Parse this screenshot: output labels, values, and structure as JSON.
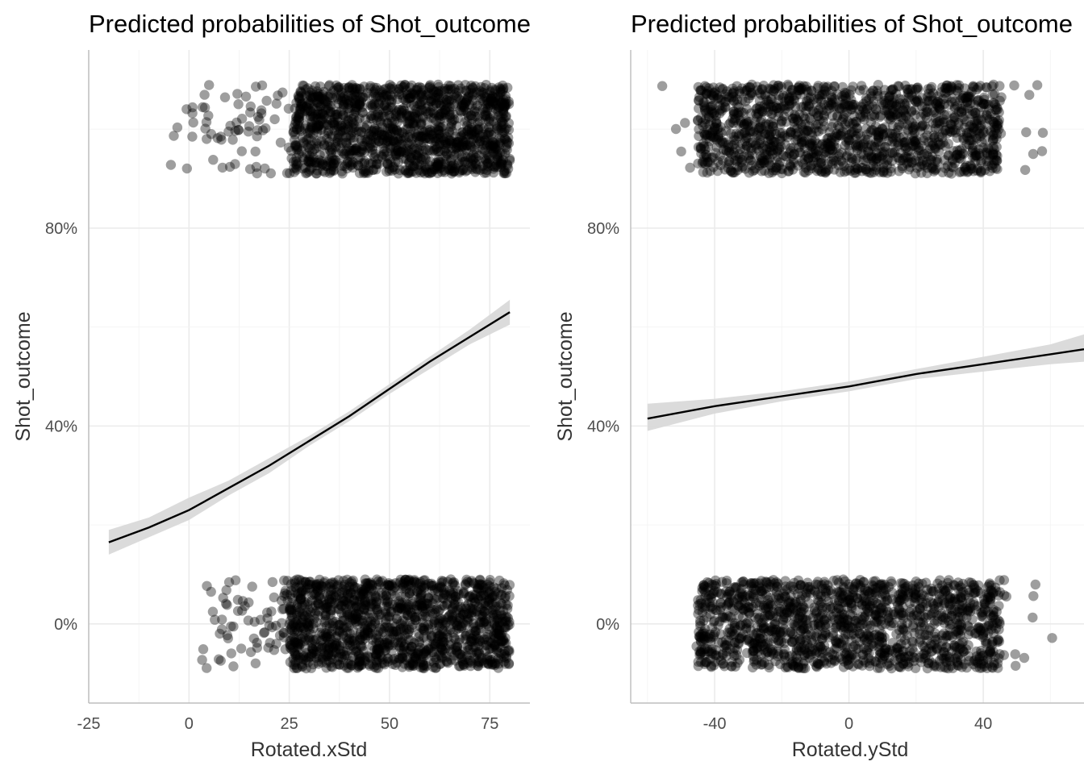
{
  "chart_data": [
    {
      "type": "line",
      "title": "Predicted probabilities of Shot_outcome",
      "xlabel": "Rotated.xStd",
      "ylabel": "Shot_outcome",
      "xlim": [
        -25,
        85
      ],
      "ylim": [
        -0.16,
        1.16
      ],
      "grid": true,
      "x_ticks": [
        -25,
        0,
        25,
        50,
        75
      ],
      "x_tick_labels": [
        "-25",
        "0",
        "25",
        "50",
        "75"
      ],
      "y_ticks": [
        0,
        0.4,
        0.8
      ],
      "y_tick_labels": [
        "0%",
        "40%",
        "80%"
      ],
      "series": [
        {
          "x": [
            -20,
            -10,
            0,
            10,
            20,
            30,
            40,
            50,
            60,
            70,
            80
          ],
          "y": [
            0.165,
            0.195,
            0.23,
            0.275,
            0.32,
            0.37,
            0.42,
            0.475,
            0.53,
            0.58,
            0.63
          ],
          "ci_low": [
            0.14,
            0.175,
            0.21,
            0.26,
            0.305,
            0.36,
            0.41,
            0.465,
            0.515,
            0.565,
            0.605
          ],
          "ci_high": [
            0.19,
            0.215,
            0.255,
            0.29,
            0.335,
            0.38,
            0.43,
            0.485,
            0.54,
            0.595,
            0.655
          ]
        }
      ],
      "observations": {
        "outcome_1": {
          "x_dense": [
            26,
            80
          ],
          "x_sparse": [
            -7,
            26
          ],
          "y_band": [
            0.91,
            1.09
          ]
        },
        "outcome_0": {
          "x_dense": [
            25,
            80
          ],
          "x_sparse": [
            -3,
            25
          ],
          "y_band": [
            -0.09,
            0.09
          ]
        }
      }
    },
    {
      "type": "line",
      "title": "Predicted probabilities of Shot_outcome",
      "xlabel": "Rotated.yStd",
      "ylabel": "Shot_outcome",
      "xlim": [
        -65,
        70
      ],
      "ylim": [
        -0.16,
        1.16
      ],
      "grid": true,
      "x_ticks": [
        -40,
        0,
        40
      ],
      "x_tick_labels": [
        "-40",
        "0",
        "40"
      ],
      "y_ticks": [
        0,
        0.4,
        0.8
      ],
      "y_tick_labels": [
        "0%",
        "40%",
        "80%"
      ],
      "series": [
        {
          "x": [
            -60,
            -40,
            -20,
            0,
            20,
            40,
            60,
            70
          ],
          "y": [
            0.415,
            0.44,
            0.46,
            0.48,
            0.505,
            0.525,
            0.545,
            0.555
          ],
          "ci_low": [
            0.39,
            0.425,
            0.45,
            0.47,
            0.495,
            0.51,
            0.525,
            0.53
          ],
          "ci_high": [
            0.445,
            0.455,
            0.47,
            0.49,
            0.515,
            0.54,
            0.565,
            0.585
          ]
        }
      ],
      "observations": {
        "outcome_1": {
          "x_dense": [
            -45,
            45
          ],
          "x_sparse": [
            -60,
            60
          ],
          "y_band": [
            0.91,
            1.09
          ]
        },
        "outcome_0": {
          "x_dense": [
            -45,
            45
          ],
          "x_sparse": [
            -60,
            62
          ],
          "y_band": [
            -0.09,
            0.09
          ]
        }
      }
    }
  ]
}
